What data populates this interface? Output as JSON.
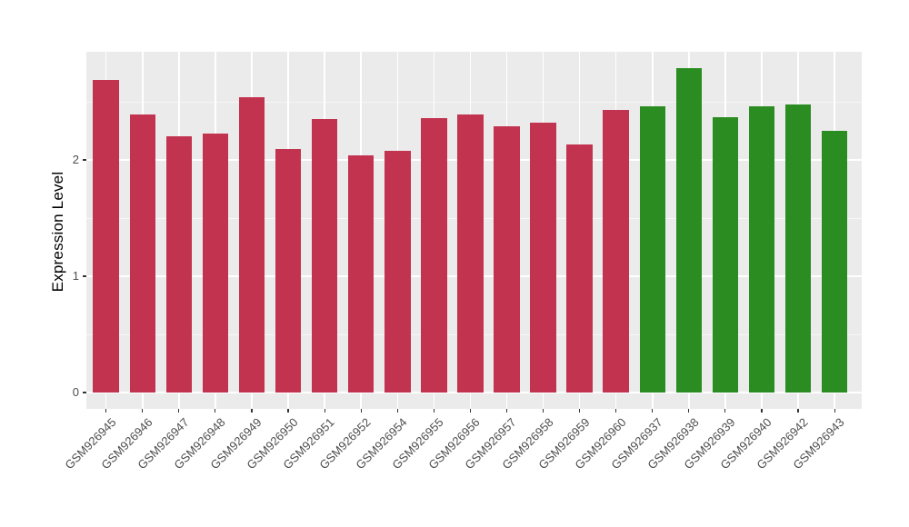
{
  "chart_data": {
    "type": "bar",
    "title": "",
    "xlabel": "",
    "ylabel": "Expression Level",
    "yticks": [
      0,
      1,
      2
    ],
    "ytick_labels": [
      "0",
      "1",
      "2"
    ],
    "minor_gridlines": [
      0.5,
      1.5,
      2.5
    ],
    "ylim": [
      -0.14,
      2.93
    ],
    "grid": "white major and minor horizontal lines plus vertical line at each bar center, on gray panel",
    "legend_position": "none",
    "categories": [
      "GSM926945",
      "GSM926946",
      "GSM926947",
      "GSM926948",
      "GSM926949",
      "GSM926950",
      "GSM926951",
      "GSM926952",
      "GSM926954",
      "GSM926955",
      "GSM926956",
      "GSM926957",
      "GSM926958",
      "GSM926959",
      "GSM926960",
      "GSM926937",
      "GSM926938",
      "GSM926939",
      "GSM926940",
      "GSM926942",
      "GSM926943"
    ],
    "values": [
      2.69,
      2.39,
      2.2,
      2.23,
      2.54,
      2.09,
      2.35,
      2.04,
      2.08,
      2.36,
      2.39,
      2.29,
      2.32,
      2.13,
      2.43,
      2.46,
      2.79,
      2.37,
      2.46,
      2.48,
      2.25
    ],
    "groups": [
      "red",
      "red",
      "red",
      "red",
      "red",
      "red",
      "red",
      "red",
      "red",
      "red",
      "red",
      "red",
      "red",
      "red",
      "red",
      "green",
      "green",
      "green",
      "green",
      "green",
      "green"
    ],
    "group_colors": {
      "red": "#C23350",
      "green": "#2B8C21"
    },
    "panel_color": "#EBEBEB",
    "gridline_color": "#FFFFFF",
    "axis_text_color": "#4D4D4D",
    "axis_title_color": "#000000"
  }
}
